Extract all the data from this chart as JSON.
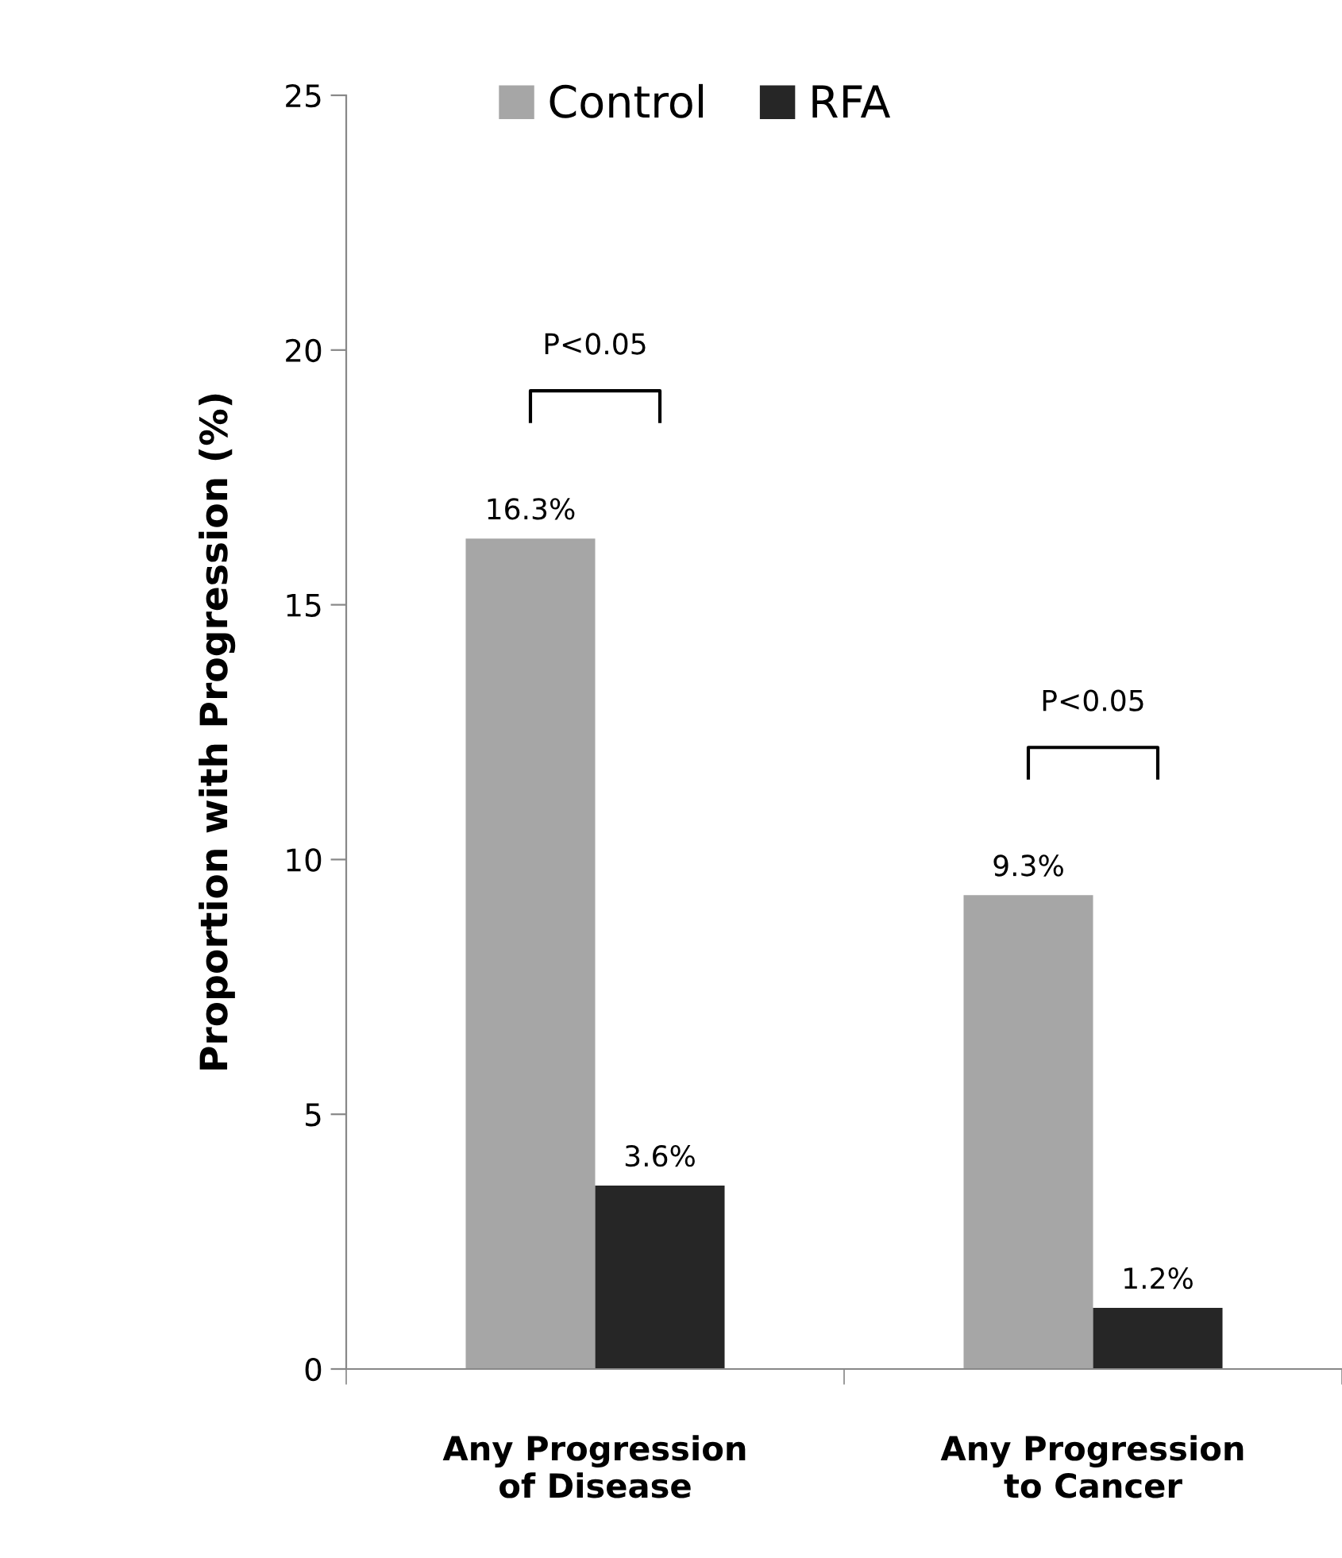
{
  "chart_data": {
    "type": "bar",
    "categories": [
      "Any Progression\nof Disease",
      "Any Progression\nto Cancer"
    ],
    "ylabel": "Proportion with Progression (%)",
    "series": [
      {
        "name": "Control",
        "color": "#a6a6a6",
        "values": [
          16.3,
          9.3
        ],
        "value_labels": [
          "16.3%",
          "9.3%"
        ]
      },
      {
        "name": "RFA",
        "color": "#262626",
        "values": [
          3.6,
          1.2
        ],
        "value_labels": [
          "3.6%",
          "1.2%"
        ]
      }
    ],
    "ylim": [
      0,
      25
    ],
    "yticks": [
      0,
      5,
      10,
      15,
      20,
      25
    ],
    "annotations": [
      "P<0.05",
      "P<0.05"
    ],
    "legend": "top",
    "grid": false
  }
}
